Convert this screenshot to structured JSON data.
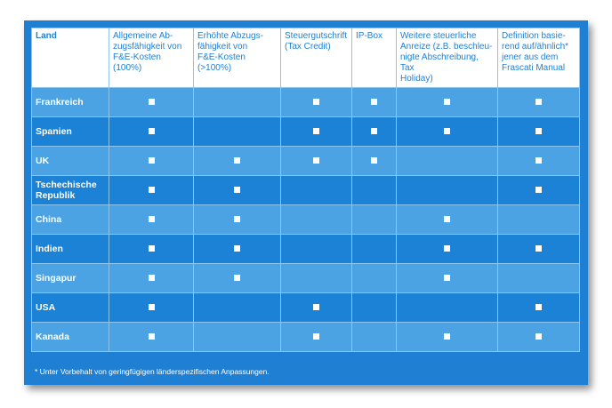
{
  "headers": [
    "Land",
    "Allgemeine Ab-\nzugsfähigkeit von\nF&E-Kosten (100%)",
    "Erhöhte Abzugs-\nfähigkeit von\nF&E-Kosten (>100%)",
    "Steuergutschrift\n(Tax Credit)",
    "IP-Box",
    "Weitere steuerliche\nAnreize (z.B. beschleu-\nnigte Abschreibung, Tax\nHoliday)",
    "Definition basie-\nrend auf/ähnlich*\njener aus dem\nFrascati Manual"
  ],
  "rows": [
    {
      "country": "Frankreich",
      "marks": [
        true,
        false,
        true,
        true,
        true,
        true
      ]
    },
    {
      "country": "Spanien",
      "marks": [
        true,
        false,
        true,
        true,
        true,
        true
      ]
    },
    {
      "country": "UK",
      "marks": [
        true,
        true,
        true,
        true,
        false,
        true
      ]
    },
    {
      "country": "Tschechische\nRepublik",
      "marks": [
        true,
        true,
        false,
        false,
        false,
        true
      ]
    },
    {
      "country": "China",
      "marks": [
        true,
        true,
        false,
        false,
        true,
        false
      ]
    },
    {
      "country": "Indien",
      "marks": [
        true,
        true,
        false,
        false,
        true,
        true
      ]
    },
    {
      "country": "Singapur",
      "marks": [
        true,
        true,
        false,
        false,
        true,
        false
      ]
    },
    {
      "country": "USA",
      "marks": [
        true,
        false,
        true,
        false,
        false,
        true
      ]
    },
    {
      "country": "Kanada",
      "marks": [
        true,
        false,
        true,
        false,
        true,
        true
      ]
    }
  ],
  "footnote": "* Unter Vorbehalt von geringfügigen länderspezifischen Anpassungen.",
  "colors": {
    "panel_blue": "#1f7fd3",
    "row_light": "#4ba3e3",
    "row_dark": "#1b82d6",
    "header_bg": "#ffffff"
  }
}
